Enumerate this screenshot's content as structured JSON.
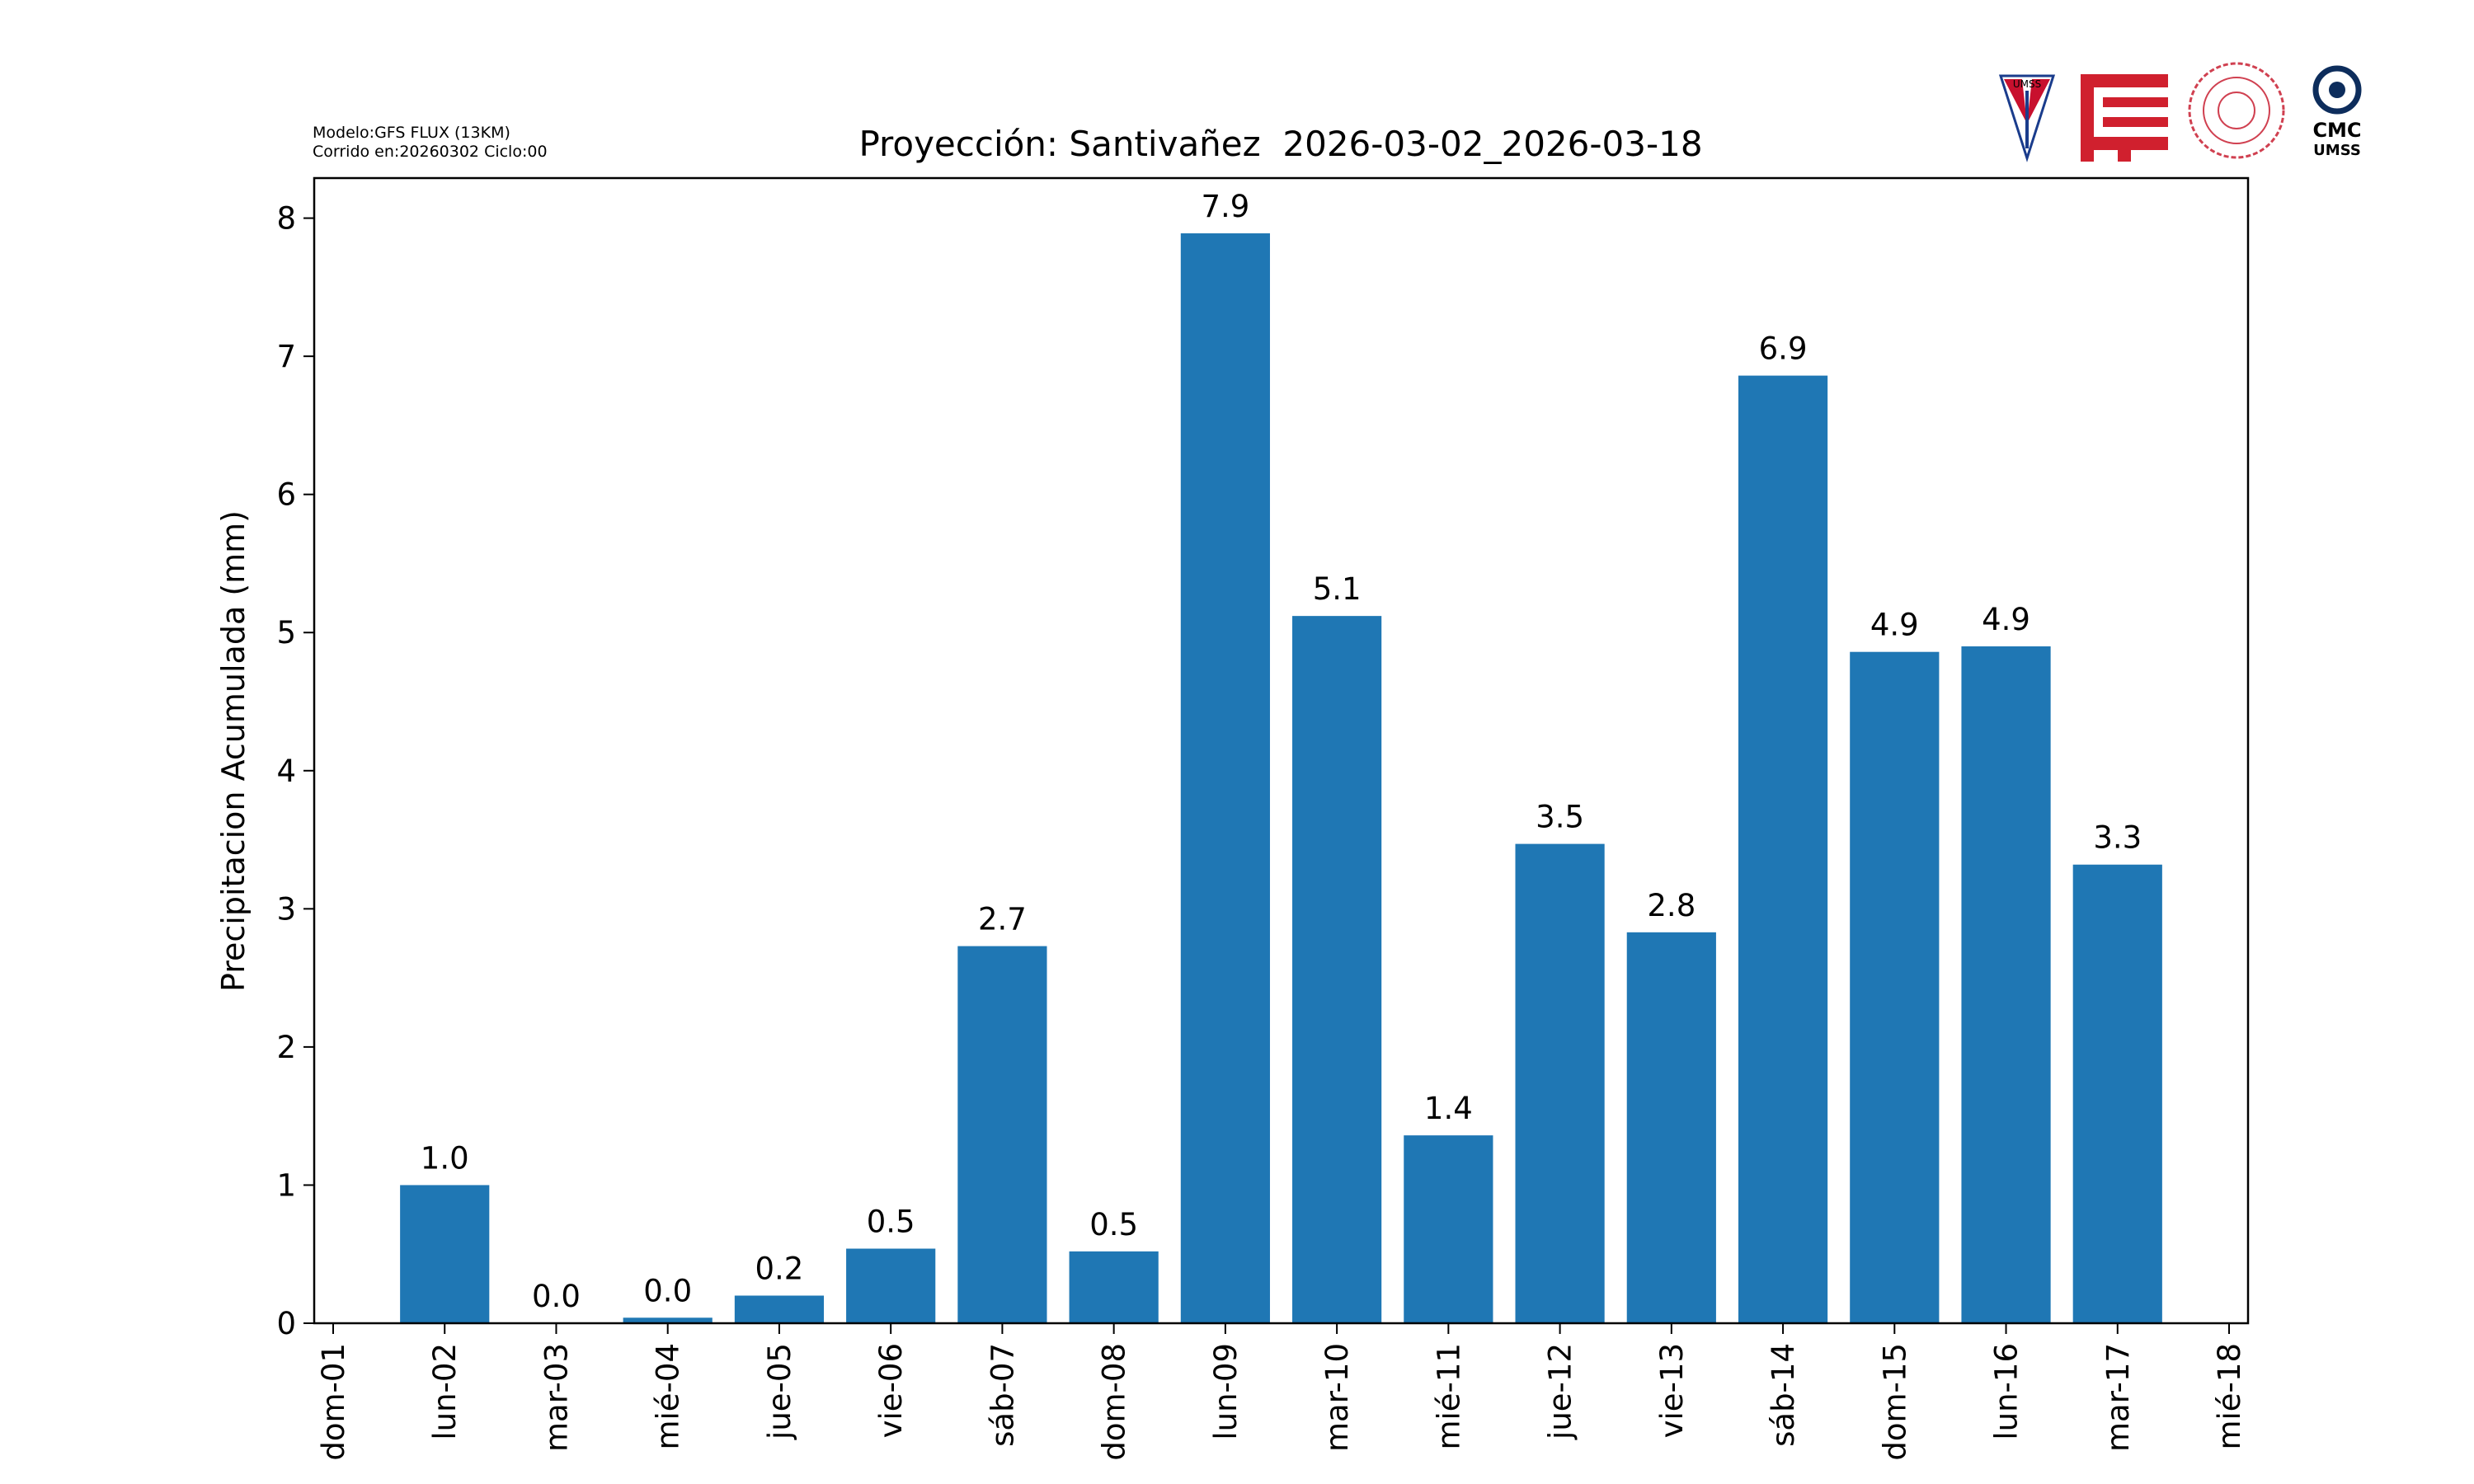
{
  "chart_data": {
    "type": "bar",
    "title": "Proyección: Santivañez  2026-03-02_2026-03-18",
    "notes": [
      "Modelo:GFS FLUX (13KM)",
      "Corrido en:20260302 Ciclo:00"
    ],
    "y_label": "Precipitacion Acumulada (mm)",
    "categories": [
      "dom-01",
      "lun-02",
      "mar-03",
      "mié-04",
      "jue-05",
      "vie-06",
      "sáb-07",
      "dom-08",
      "lun-09",
      "mar-10",
      "mié-11",
      "jue-12",
      "vie-13",
      "sáb-14",
      "dom-15",
      "lun-16",
      "mar-17",
      "mié-18"
    ],
    "values": [
      null,
      1.0,
      0.0,
      0.04,
      0.2,
      0.54,
      2.73,
      0.52,
      7.89,
      5.12,
      1.36,
      3.47,
      2.83,
      6.86,
      4.86,
      4.9,
      3.32,
      null
    ],
    "value_labels": [
      null,
      "1.0",
      "0.0",
      "0.0",
      "0.2",
      "0.5",
      "2.7",
      "0.5",
      "7.9",
      "5.1",
      "1.4",
      "3.5",
      "2.8",
      "6.9",
      "4.9",
      "4.9",
      "3.3",
      null
    ],
    "color": "#1f77b4",
    "ylim": [
      0,
      8.29
    ],
    "yticks": [
      0,
      1,
      2,
      3,
      4,
      5,
      6,
      7,
      8
    ],
    "grid": false
  },
  "logos": {
    "shield": "UMSS",
    "cmc": "CMC",
    "cmc_sub": "UMSS"
  }
}
